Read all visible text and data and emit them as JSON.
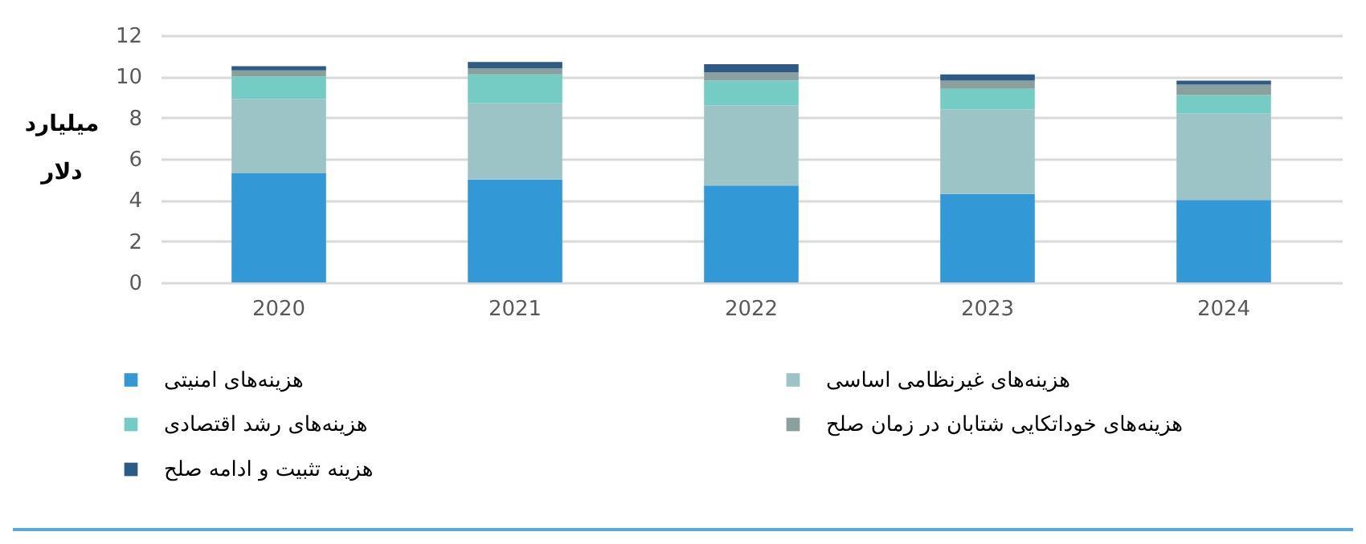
{
  "chart_data": {
    "type": "bar",
    "stacked": true,
    "ylabel": "میلیارد دلار",
    "categories": [
      "2020",
      "2021",
      "2022",
      "2023",
      "2024"
    ],
    "series": [
      {
        "name": "هزینه‌های امنیتی",
        "color": "#3399d6",
        "values": [
          5.3,
          5.0,
          4.7,
          4.3,
          4.0
        ]
      },
      {
        "name": "هزینه‌های غیرنظامی اساسی",
        "color": "#9cc3c5",
        "values": [
          3.6,
          3.7,
          3.9,
          4.1,
          4.2
        ]
      },
      {
        "name": "هزینه‌های رشد اقتصادی",
        "color": "#74ccc4",
        "values": [
          1.1,
          1.4,
          1.2,
          1.0,
          0.9
        ]
      },
      {
        "name": "هزینه‌های خوداتکایی شتابان در زمان صلح",
        "color": "#8aa09c",
        "values": [
          0.3,
          0.3,
          0.4,
          0.4,
          0.5
        ]
      },
      {
        "name": "هزینه تثبیت و  ادامه صلح",
        "color": "#2e5a86",
        "values": [
          0.2,
          0.3,
          0.4,
          0.3,
          0.2
        ]
      }
    ],
    "ylim": [
      0,
      12
    ],
    "yticks": [
      0,
      2,
      4,
      6,
      8,
      10,
      12
    ],
    "grid": "y",
    "legend": "bottom"
  }
}
